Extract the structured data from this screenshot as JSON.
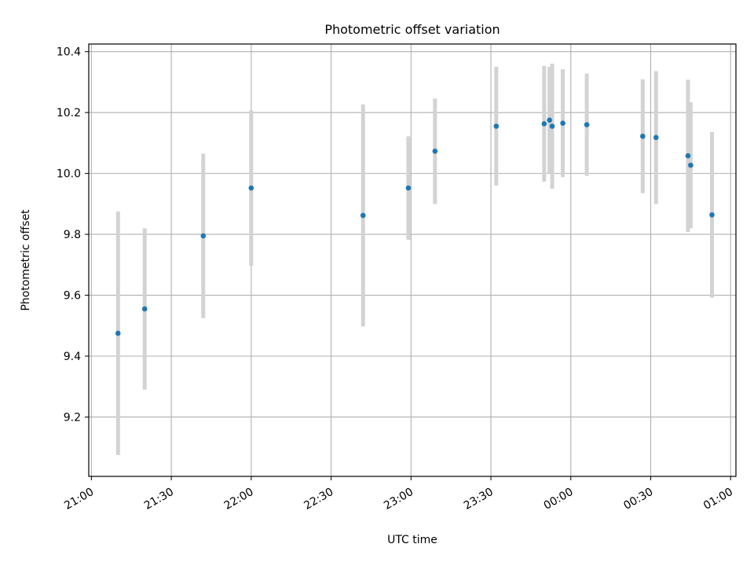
{
  "chart_data": {
    "type": "scatter",
    "title": "Photometric offset variation",
    "xlabel": "UTC time",
    "ylabel": "Photometric offset",
    "x_tick_labels": [
      "21:00",
      "21:30",
      "22:00",
      "22:30",
      "23:00",
      "23:30",
      "00:00",
      "00:30",
      "01:00"
    ],
    "y_tick_labels": [
      "9.2",
      "9.4",
      "9.6",
      "9.8",
      "10.0",
      "10.2",
      "10.4"
    ],
    "y_ticks": [
      9.2,
      9.4,
      9.6,
      9.8,
      10.0,
      10.2,
      10.4
    ],
    "ylim": [
      9.005,
      10.425
    ],
    "xlim": [
      "20:59",
      "25:02"
    ],
    "grid": true,
    "marker_color": "#1f77b4",
    "errorbar_color": "#d3d3d3",
    "points": [
      {
        "time": "21:10",
        "y": 9.475,
        "err": 0.4
      },
      {
        "time": "21:20",
        "y": 9.555,
        "err": 0.265
      },
      {
        "time": "21:42",
        "y": 9.795,
        "err": 0.27
      },
      {
        "time": "22:00",
        "y": 9.952,
        "err": 0.255
      },
      {
        "time": "22:42",
        "y": 9.862,
        "err": 0.365
      },
      {
        "time": "22:59",
        "y": 9.952,
        "err": 0.17
      },
      {
        "time": "23:09",
        "y": 10.073,
        "err": 0.173
      },
      {
        "time": "23:32",
        "y": 10.155,
        "err": 0.195
      },
      {
        "time": "23:50",
        "y": 10.163,
        "err": 0.19
      },
      {
        "time": "23:52",
        "y": 10.175,
        "err": 0.175
      },
      {
        "time": "23:53",
        "y": 10.155,
        "err": 0.205
      },
      {
        "time": "23:57",
        "y": 10.165,
        "err": 0.177
      },
      {
        "time": "00:06",
        "y": 10.16,
        "err": 0.168
      },
      {
        "time": "00:27",
        "y": 10.122,
        "err": 0.187
      },
      {
        "time": "00:32",
        "y": 10.118,
        "err": 0.218
      },
      {
        "time": "00:44",
        "y": 10.058,
        "err": 0.25
      },
      {
        "time": "00:45",
        "y": 10.027,
        "err": 0.207
      },
      {
        "time": "00:53",
        "y": 9.864,
        "err": 0.272
      }
    ]
  }
}
